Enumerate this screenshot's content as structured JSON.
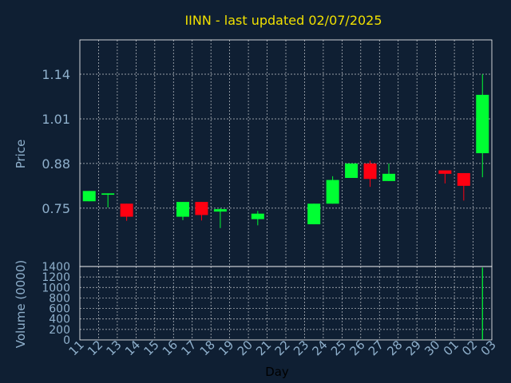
{
  "chart_data": {
    "type": "candlestick",
    "title": "IINN - last updated 02/07/2025",
    "xlabel": "Day",
    "colors": {
      "background": "#0f1f33",
      "grid": "#ffffff",
      "axis_text": "#8fb0cc",
      "title": "#f0e000",
      "up": "#00ff33",
      "down": "#ff0011"
    },
    "x_ticks": [
      "11",
      "12",
      "13",
      "14",
      "15",
      "16",
      "17",
      "18",
      "19",
      "20",
      "21",
      "22",
      "23",
      "24",
      "25",
      "26",
      "27",
      "28",
      "29",
      "30",
      "01",
      "02",
      "03"
    ],
    "price_panel": {
      "ylabel": "Price",
      "ylim": [
        0.58,
        1.24
      ],
      "y_ticks": [
        "0.75",
        "0.88",
        "1.01",
        "1.14"
      ],
      "y_tick_values": [
        0.75,
        0.88,
        1.01,
        1.14
      ],
      "grid": true,
      "candles": [
        {
          "day": "11",
          "open": 0.77,
          "close": 0.8,
          "high": 0.8,
          "low": 0.77
        },
        {
          "day": "12",
          "open": 0.789,
          "close": 0.793,
          "high": 0.793,
          "low": 0.752
        },
        {
          "day": "13",
          "open": 0.763,
          "close": 0.725,
          "high": 0.763,
          "low": 0.713
        },
        {
          "day": "16",
          "open": 0.725,
          "close": 0.768,
          "high": 0.768,
          "low": 0.715
        },
        {
          "day": "17",
          "open": 0.768,
          "close": 0.73,
          "high": 0.768,
          "low": 0.714
        },
        {
          "day": "18",
          "open": 0.74,
          "close": 0.747,
          "high": 0.75,
          "low": 0.692
        },
        {
          "day": "20",
          "open": 0.718,
          "close": 0.734,
          "high": 0.742,
          "low": 0.7
        },
        {
          "day": "23",
          "open": 0.703,
          "close": 0.763,
          "high": 0.763,
          "low": 0.703
        },
        {
          "day": "24",
          "open": 0.763,
          "close": 0.832,
          "high": 0.843,
          "low": 0.763
        },
        {
          "day": "25",
          "open": 0.838,
          "close": 0.88,
          "high": 0.88,
          "low": 0.838
        },
        {
          "day": "26",
          "open": 0.88,
          "close": 0.835,
          "high": 0.888,
          "low": 0.812
        },
        {
          "day": "27",
          "open": 0.829,
          "close": 0.85,
          "high": 0.88,
          "low": 0.829
        },
        {
          "day": "30",
          "open": 0.86,
          "close": 0.85,
          "high": 0.86,
          "low": 0.822
        },
        {
          "day": "01",
          "open": 0.852,
          "close": 0.815,
          "high": 0.852,
          "low": 0.772
        },
        {
          "day": "02",
          "open": 0.91,
          "close": 1.08,
          "high": 1.14,
          "low": 0.84
        }
      ]
    },
    "volume_panel": {
      "ylabel": "Volume (0000)",
      "ylim": [
        0,
        1400
      ],
      "y_ticks": [
        "0",
        "200",
        "400",
        "600",
        "800",
        "1000",
        "1200",
        "1400"
      ],
      "y_tick_values": [
        0,
        200,
        400,
        600,
        800,
        1000,
        1200,
        1400
      ],
      "grid": true,
      "bars": [
        {
          "day": "11",
          "value": 0
        },
        {
          "day": "12",
          "value": 0
        },
        {
          "day": "13",
          "value": 0
        },
        {
          "day": "16",
          "value": 0
        },
        {
          "day": "17",
          "value": 0
        },
        {
          "day": "18",
          "value": 0
        },
        {
          "day": "20",
          "value": 0
        },
        {
          "day": "23",
          "value": 0
        },
        {
          "day": "24",
          "value": 0
        },
        {
          "day": "25",
          "value": 0
        },
        {
          "day": "26",
          "value": 0
        },
        {
          "day": "27",
          "value": 0
        },
        {
          "day": "30",
          "value": 0
        },
        {
          "day": "01",
          "value": 0
        },
        {
          "day": "02",
          "value": 1380
        }
      ]
    }
  }
}
